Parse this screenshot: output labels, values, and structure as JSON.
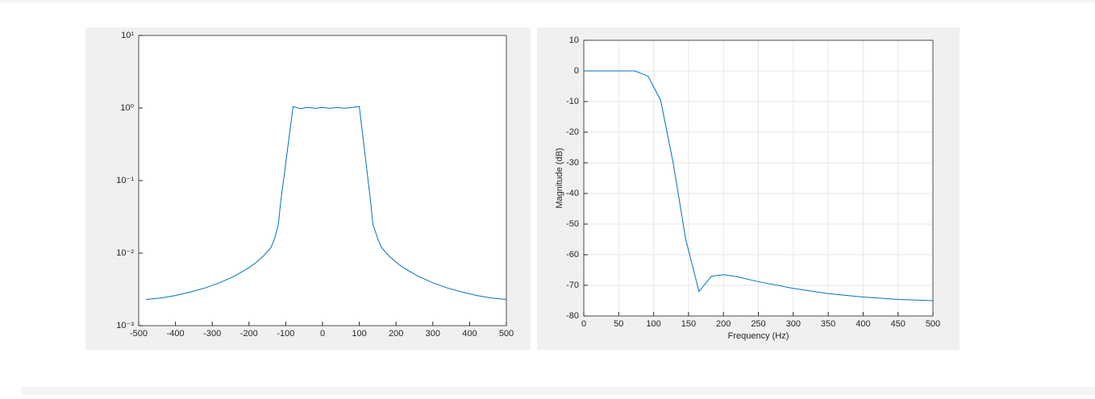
{
  "chart_data": [
    {
      "type": "line",
      "yscale": "log",
      "grid": false,
      "color": "#0072bd",
      "x": [
        -480,
        -440,
        -400,
        -360,
        -320,
        -280,
        -240,
        -200,
        -180,
        -160,
        -140,
        -130,
        -120,
        -114,
        -80,
        -60,
        -40,
        -20,
        0,
        20,
        40,
        60,
        80,
        100,
        131,
        137,
        150,
        160,
        180,
        200,
        220,
        260,
        300,
        340,
        380,
        420,
        460,
        500
      ],
      "values": [
        0.0023,
        0.0024,
        0.0026,
        0.0029,
        0.0033,
        0.0039,
        0.0048,
        0.0063,
        0.0075,
        0.0092,
        0.012,
        0.016,
        0.025,
        0.05,
        1.05,
        0.98,
        1.02,
        0.99,
        1.02,
        0.99,
        1.02,
        0.99,
        1.02,
        1.05,
        0.05,
        0.025,
        0.016,
        0.012,
        0.0092,
        0.0075,
        0.0063,
        0.0048,
        0.0039,
        0.0033,
        0.0029,
        0.0026,
        0.0024,
        0.0023
      ],
      "xlim": [
        -500,
        500
      ],
      "xticks": [
        -500,
        -400,
        -300,
        -200,
        -100,
        0,
        100,
        200,
        300,
        400,
        500
      ],
      "ylim": [
        0.001,
        10
      ],
      "yticks": [
        {
          "value": 0.001,
          "label": "10⁻³"
        },
        {
          "value": 0.01,
          "label": "10⁻²"
        },
        {
          "value": 0.1,
          "label": "10⁻¹"
        },
        {
          "value": 1,
          "label": "10⁰"
        },
        {
          "value": 10,
          "label": "10¹"
        }
      ]
    },
    {
      "type": "line",
      "yscale": "linear",
      "grid": true,
      "color": "#0072bd",
      "xlabel": "Frequency (Hz)",
      "ylabel": "Magnitude (dB)",
      "x": [
        0,
        73,
        92,
        110,
        128,
        146,
        165,
        183,
        201,
        220,
        250,
        300,
        350,
        400,
        450,
        500
      ],
      "values": [
        0,
        0,
        -1.7,
        -9.5,
        -30,
        -55,
        -72,
        -67,
        -66.5,
        -67.2,
        -68.8,
        -71,
        -72.7,
        -73.8,
        -74.6,
        -75
      ],
      "xlim": [
        0,
        500
      ],
      "xticks": [
        0,
        50,
        100,
        150,
        200,
        250,
        300,
        350,
        400,
        450,
        500
      ],
      "ylim": [
        -80,
        10
      ],
      "yticks": [
        -80,
        -70,
        -60,
        -50,
        -40,
        -30,
        -20,
        -10,
        0,
        10
      ]
    }
  ]
}
